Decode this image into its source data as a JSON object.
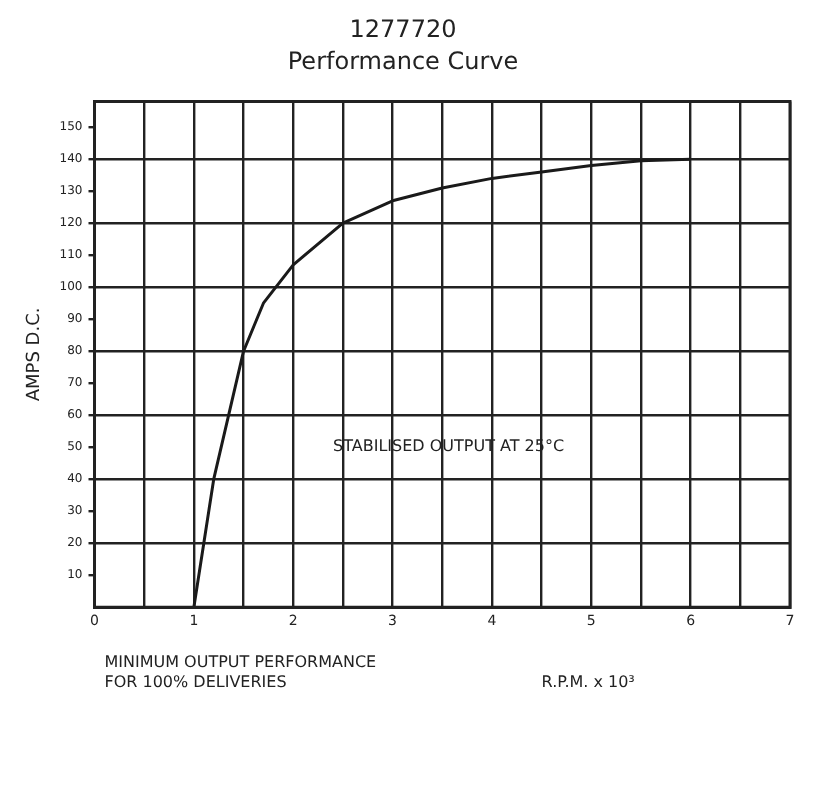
{
  "chart_data": {
    "type": "line",
    "title": "1277720",
    "subtitle": "Performance Curve",
    "xlabel": "R.P.M. x 10³",
    "ylabel": "AMPS D.C.",
    "series": [
      {
        "color": "#1a1a1a",
        "x": [
          1,
          1.1,
          1.2,
          1.35,
          1.5,
          1.7,
          2,
          2.5,
          3,
          3.5,
          4,
          4.5,
          5,
          5.5,
          6
        ],
        "values": [
          0,
          20,
          40,
          60,
          80,
          95,
          107,
          120,
          127,
          131,
          134,
          136,
          138,
          139.5,
          140
        ]
      }
    ],
    "xlim": [
      0,
      7
    ],
    "ylim": [
      0,
      158
    ],
    "xticks": [
      0,
      {
        "value": 0.5,
        "label": null
      },
      1,
      {
        "value": 1.5,
        "label": null
      },
      2,
      {
        "value": 2.5,
        "label": null
      },
      3,
      {
        "value": 3.5,
        "label": null
      },
      4,
      {
        "value": 4.5,
        "label": null
      },
      5,
      {
        "value": 5.5,
        "label": null
      },
      6,
      {
        "value": 6.5,
        "label": null
      },
      7
    ],
    "yticks": [
      10,
      20,
      30,
      40,
      50,
      60,
      70,
      80,
      90,
      100,
      110,
      120,
      130,
      140,
      150
    ],
    "grid": true,
    "marker": "none",
    "line_style": "solid",
    "annotations": [
      "STABILISED OUTPUT AT 25°C",
      "MINIMUM OUTPUT PERFORMANCE\nFOR 100% DELIVERIES"
    ]
  }
}
